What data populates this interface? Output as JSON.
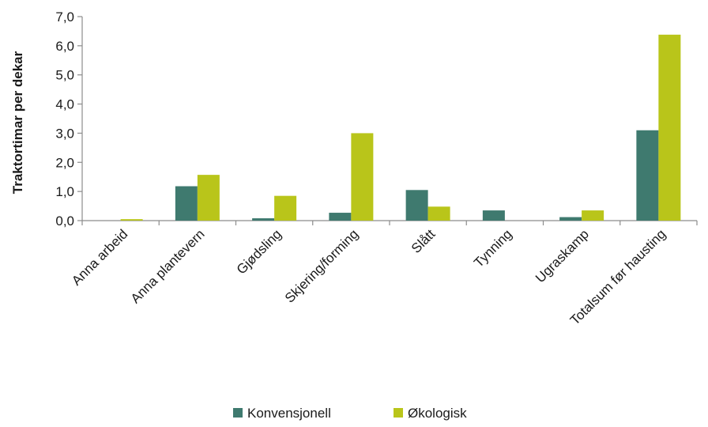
{
  "chart_data": {
    "type": "bar",
    "title": "",
    "xlabel": "",
    "ylabel": "Traktortimar per dekar",
    "ylim": [
      0,
      7
    ],
    "yticks": [
      "0,0",
      "1,0",
      "2,0",
      "3,0",
      "4,0",
      "5,0",
      "6,0",
      "7,0"
    ],
    "grid": false,
    "legend_position": "bottom",
    "categories": [
      "Anna arbeid",
      "Anna plantevern",
      "Gjødsling",
      "Skjering/forming",
      "Slått",
      "Tynning",
      "Ugraskamp",
      "Totalsum før hausting"
    ],
    "series": [
      {
        "name": "Konvensjonell",
        "color": "#3f7a6f",
        "values": [
          0.0,
          1.18,
          0.08,
          0.27,
          1.05,
          0.35,
          0.12,
          3.1
        ]
      },
      {
        "name": "Økologisk",
        "color": "#b9c51a",
        "values": [
          0.05,
          1.57,
          0.85,
          3.0,
          0.48,
          0.0,
          0.35,
          6.38
        ]
      }
    ]
  }
}
